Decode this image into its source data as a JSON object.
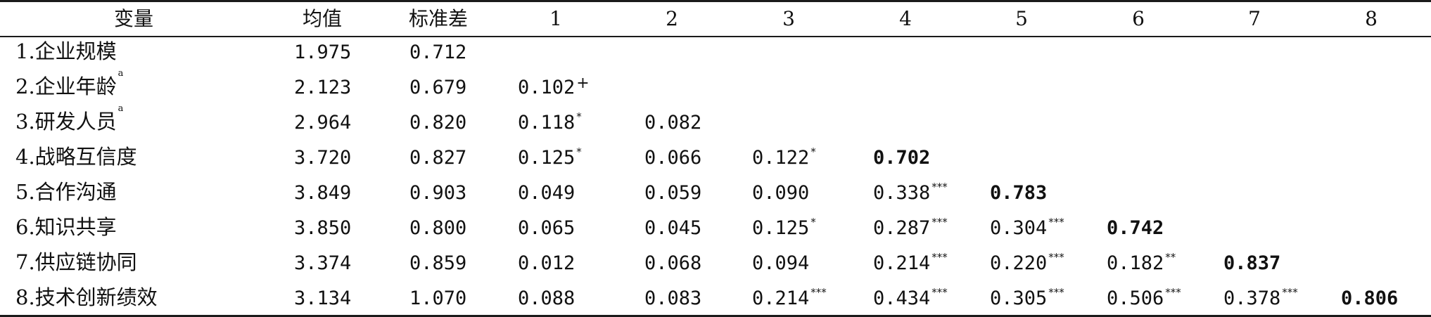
{
  "headers": [
    "变量",
    "均值",
    "标准差",
    "1",
    "2",
    "3",
    "4",
    "5",
    "6",
    "7",
    "8"
  ],
  "rows": [
    {
      "label": "1.企业规模",
      "label_sup": "",
      "mean": "1.975",
      "sd": "0.712",
      "cells": [
        {
          "v": "",
          "s": ""
        },
        {
          "v": "",
          "s": ""
        },
        {
          "v": "",
          "s": ""
        },
        {
          "v": "",
          "s": ""
        },
        {
          "v": "",
          "s": ""
        },
        {
          "v": "",
          "s": ""
        },
        {
          "v": "",
          "s": ""
        },
        {
          "v": "",
          "s": ""
        }
      ]
    },
    {
      "label": "2.企业年龄",
      "label_sup": "a",
      "mean": "2.123",
      "sd": "0.679",
      "cells": [
        {
          "v": "0.102",
          "s": "+"
        },
        {
          "v": "",
          "s": ""
        },
        {
          "v": "",
          "s": ""
        },
        {
          "v": "",
          "s": ""
        },
        {
          "v": "",
          "s": ""
        },
        {
          "v": "",
          "s": ""
        },
        {
          "v": "",
          "s": ""
        },
        {
          "v": "",
          "s": ""
        }
      ]
    },
    {
      "label": "3.研发人员",
      "label_sup": "a",
      "mean": "2.964",
      "sd": "0.820",
      "cells": [
        {
          "v": "0.118",
          "s": "*"
        },
        {
          "v": "0.082",
          "s": ""
        },
        {
          "v": "",
          "s": ""
        },
        {
          "v": "",
          "s": ""
        },
        {
          "v": "",
          "s": ""
        },
        {
          "v": "",
          "s": ""
        },
        {
          "v": "",
          "s": ""
        },
        {
          "v": "",
          "s": ""
        }
      ]
    },
    {
      "label": "4.战略互信度",
      "label_sup": "",
      "mean": "3.720",
      "sd": "0.827",
      "cells": [
        {
          "v": "0.125",
          "s": "*"
        },
        {
          "v": "0.066",
          "s": ""
        },
        {
          "v": "0.122",
          "s": "*"
        },
        {
          "v": "0.702",
          "s": "",
          "b": true
        },
        {
          "v": "",
          "s": ""
        },
        {
          "v": "",
          "s": ""
        },
        {
          "v": "",
          "s": ""
        },
        {
          "v": "",
          "s": ""
        }
      ]
    },
    {
      "label": "5.合作沟通",
      "label_sup": "",
      "mean": "3.849",
      "sd": "0.903",
      "cells": [
        {
          "v": "0.049",
          "s": ""
        },
        {
          "v": "0.059",
          "s": ""
        },
        {
          "v": "0.090",
          "s": ""
        },
        {
          "v": "0.338",
          "s": "***"
        },
        {
          "v": "0.783",
          "s": "",
          "b": true
        },
        {
          "v": "",
          "s": ""
        },
        {
          "v": "",
          "s": ""
        },
        {
          "v": "",
          "s": ""
        }
      ]
    },
    {
      "label": "6.知识共享",
      "label_sup": "",
      "mean": "3.850",
      "sd": "0.800",
      "cells": [
        {
          "v": "0.065",
          "s": ""
        },
        {
          "v": "0.045",
          "s": ""
        },
        {
          "v": "0.125",
          "s": "*"
        },
        {
          "v": "0.287",
          "s": "***"
        },
        {
          "v": "0.304",
          "s": "***"
        },
        {
          "v": "0.742",
          "s": "",
          "b": true
        },
        {
          "v": "",
          "s": ""
        },
        {
          "v": "",
          "s": ""
        }
      ]
    },
    {
      "label": "7.供应链协同",
      "label_sup": "",
      "mean": "3.374",
      "sd": "0.859",
      "cells": [
        {
          "v": "0.012",
          "s": ""
        },
        {
          "v": "0.068",
          "s": ""
        },
        {
          "v": "0.094",
          "s": ""
        },
        {
          "v": "0.214",
          "s": "***"
        },
        {
          "v": "0.220",
          "s": "***"
        },
        {
          "v": "0.182",
          "s": "**"
        },
        {
          "v": "0.837",
          "s": "",
          "b": true
        },
        {
          "v": "",
          "s": ""
        }
      ]
    },
    {
      "label": "8.技术创新绩效",
      "label_sup": "",
      "mean": "3.134",
      "sd": "1.070",
      "cells": [
        {
          "v": "0.088",
          "s": ""
        },
        {
          "v": "0.083",
          "s": ""
        },
        {
          "v": "0.214",
          "s": "***"
        },
        {
          "v": "0.434",
          "s": "***"
        },
        {
          "v": "0.305",
          "s": "***"
        },
        {
          "v": "0.506",
          "s": "***"
        },
        {
          "v": "0.378",
          "s": "***"
        },
        {
          "v": "0.806",
          "s": "",
          "b": true
        }
      ]
    }
  ]
}
